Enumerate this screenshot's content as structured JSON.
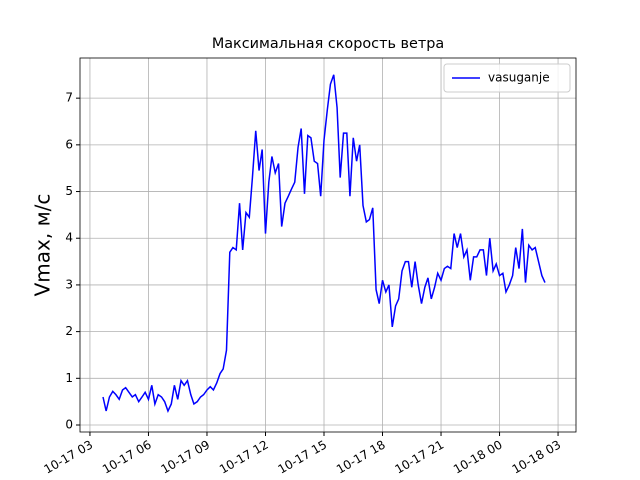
{
  "chart_data": {
    "type": "line",
    "title": "Максимальная скорость ветра",
    "y_label": "Vmax, м/с",
    "x": [
      3.67,
      3.83,
      4,
      4.17,
      4.33,
      4.5,
      4.67,
      4.83,
      5,
      5.17,
      5.33,
      5.5,
      5.67,
      5.83,
      6,
      6.17,
      6.33,
      6.5,
      6.67,
      6.83,
      7,
      7.17,
      7.33,
      7.5,
      7.67,
      7.83,
      8,
      8.17,
      8.33,
      8.5,
      8.67,
      8.83,
      9,
      9.17,
      9.33,
      9.5,
      9.67,
      9.83,
      10,
      10.17,
      10.33,
      10.5,
      10.67,
      10.83,
      11,
      11.17,
      11.33,
      11.5,
      11.67,
      11.83,
      12,
      12.17,
      12.33,
      12.5,
      12.67,
      12.83,
      13,
      13.17,
      13.33,
      13.5,
      13.67,
      13.83,
      14,
      14.17,
      14.33,
      14.5,
      14.67,
      14.83,
      15,
      15.17,
      15.33,
      15.5,
      15.67,
      15.83,
      16,
      16.17,
      16.33,
      16.5,
      16.67,
      16.83,
      17,
      17.17,
      17.33,
      17.5,
      17.67,
      17.83,
      18,
      18.17,
      18.33,
      18.5,
      18.67,
      18.83,
      19,
      19.17,
      19.33,
      19.5,
      19.67,
      19.83,
      20,
      20.17,
      20.33,
      20.5,
      20.67,
      20.83,
      21,
      21.17,
      21.33,
      21.5,
      21.67,
      21.83,
      22,
      22.17,
      22.33,
      22.5,
      22.67,
      22.83,
      23,
      23.17,
      23.33,
      23.5,
      23.67,
      23.83,
      24,
      24.17,
      24.33,
      24.5,
      24.67,
      24.83,
      25,
      25.17,
      25.33,
      25.5,
      25.67,
      25.83,
      26,
      26.17,
      26.33
    ],
    "series": [
      {
        "name": "vasuganje",
        "color": "#0000ff",
        "values": [
          0.6,
          0.3,
          0.6,
          0.72,
          0.65,
          0.55,
          0.75,
          0.8,
          0.7,
          0.6,
          0.65,
          0.5,
          0.6,
          0.7,
          0.55,
          0.85,
          0.45,
          0.65,
          0.6,
          0.5,
          0.3,
          0.45,
          0.85,
          0.55,
          0.95,
          0.85,
          0.95,
          0.65,
          0.45,
          0.5,
          0.6,
          0.65,
          0.75,
          0.82,
          0.75,
          0.9,
          1.1,
          1.2,
          1.6,
          3.7,
          3.8,
          3.75,
          4.75,
          3.75,
          4.55,
          4.45,
          5.3,
          6.3,
          5.45,
          5.9,
          4.1,
          5.2,
          5.75,
          5.4,
          5.6,
          4.25,
          4.75,
          4.9,
          5.05,
          5.2,
          5.95,
          6.35,
          4.95,
          6.2,
          6.15,
          5.65,
          5.6,
          4.9,
          6.1,
          6.75,
          7.3,
          7.5,
          6.8,
          5.3,
          6.25,
          6.25,
          4.9,
          6.15,
          5.65,
          6.0,
          4.7,
          4.35,
          4.4,
          4.65,
          2.9,
          2.6,
          3.1,
          2.85,
          3.0,
          2.1,
          2.55,
          2.7,
          3.3,
          3.5,
          3.5,
          2.95,
          3.5,
          3.0,
          2.6,
          2.95,
          3.15,
          2.7,
          2.95,
          3.25,
          3.1,
          3.35,
          3.4,
          3.35,
          4.1,
          3.8,
          4.1,
          3.6,
          3.75,
          3.1,
          3.6,
          3.6,
          3.75,
          3.75,
          3.2,
          4.0,
          3.3,
          3.45,
          3.2,
          3.25,
          2.85,
          3.0,
          3.2,
          3.8,
          3.35,
          4.2,
          3.05,
          3.85,
          3.75,
          3.8,
          3.5,
          3.2,
          3.05
        ]
      }
    ],
    "xlim": [
      2.49,
      27.92
    ],
    "xticks": [
      {
        "value": 3,
        "label": "10-17 03"
      },
      {
        "value": 6,
        "label": "10-17 06"
      },
      {
        "value": 9,
        "label": "10-17 09"
      },
      {
        "value": 12,
        "label": "10-17 12"
      },
      {
        "value": 15,
        "label": "10-17 15"
      },
      {
        "value": 18,
        "label": "10-17 18"
      },
      {
        "value": 21,
        "label": "10-17 21"
      },
      {
        "value": 24,
        "label": "10-18 00"
      },
      {
        "value": 27,
        "label": "10-18 03"
      }
    ],
    "ylim": [
      -0.15,
      7.86
    ],
    "yticks": [
      0,
      1,
      2,
      3,
      4,
      5,
      6,
      7
    ],
    "grid": true,
    "legend": "upper right"
  }
}
